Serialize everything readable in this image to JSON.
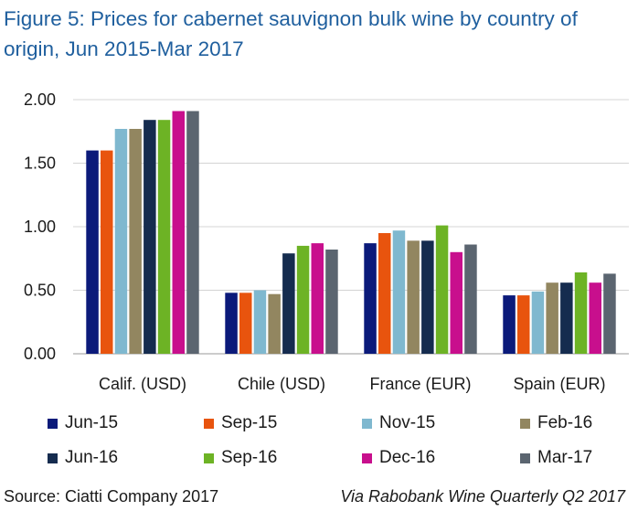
{
  "title": "Figure 5: Prices for cabernet sauvignon bulk wine by country of origin, Jun 2015-Mar 2017",
  "footer": {
    "source": "Source: Ciatti Company 2017",
    "via": "Via Rabobank Wine Quarterly Q2 2017"
  },
  "chart_data": {
    "type": "bar",
    "title": "Figure 5: Prices for cabernet sauvignon bulk wine by country of origin, Jun 2015-Mar 2017",
    "xlabel": "",
    "ylabel": "",
    "ylim": [
      0,
      2
    ],
    "yticks": [
      "0.00",
      "0.50",
      "1.00",
      "1.50",
      "2.00"
    ],
    "grid": true,
    "legend_position": "bottom",
    "categories": [
      "Calif. (USD)",
      "Chile (USD)",
      "France (EUR)",
      "Spain (EUR)"
    ],
    "series": [
      {
        "name": "Jun-15",
        "color": "#0b1a7a",
        "values": [
          1.6,
          0.48,
          0.87,
          0.46
        ]
      },
      {
        "name": "Sep-15",
        "color": "#e8540e",
        "values": [
          1.6,
          0.48,
          0.95,
          0.46
        ]
      },
      {
        "name": "Nov-15",
        "color": "#7fb8cf",
        "values": [
          1.77,
          0.5,
          0.97,
          0.49
        ]
      },
      {
        "name": "Feb-16",
        "color": "#928660",
        "values": [
          1.77,
          0.47,
          0.89,
          0.56
        ]
      },
      {
        "name": "Jun-16",
        "color": "#152c4f",
        "values": [
          1.84,
          0.79,
          0.89,
          0.56
        ]
      },
      {
        "name": "Sep-16",
        "color": "#6db325",
        "values": [
          1.84,
          0.85,
          1.01,
          0.64
        ]
      },
      {
        "name": "Dec-16",
        "color": "#c80f8d",
        "values": [
          1.91,
          0.87,
          0.8,
          0.56
        ]
      },
      {
        "name": "Mar-17",
        "color": "#5b6570",
        "values": [
          1.91,
          0.82,
          0.86,
          0.63
        ]
      }
    ]
  }
}
